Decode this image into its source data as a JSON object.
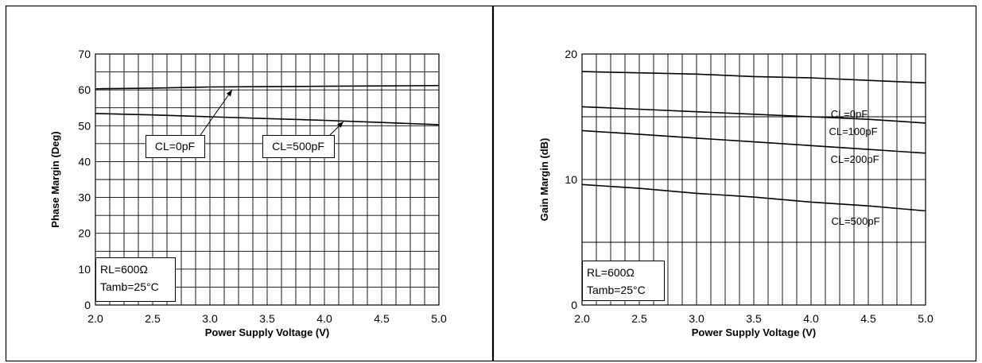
{
  "chart_data": [
    {
      "type": "line",
      "xlabel": "Power Supply Voltage (V)",
      "ylabel": "Phase Margin (Deg)",
      "xlim": [
        2.0,
        5.0
      ],
      "ylim": [
        0,
        70
      ],
      "x_ticks": [
        "2.0",
        "2.5",
        "3.0",
        "3.5",
        "4.0",
        "4.5",
        "5.0"
      ],
      "y_ticks": [
        "0",
        "10",
        "20",
        "30",
        "40",
        "50",
        "60",
        "70"
      ],
      "grid": true,
      "conditions": [
        "RL=600Ω",
        "Tamb=25°C"
      ],
      "series": [
        {
          "name": "CL=0pF",
          "x": [
            2.0,
            2.5,
            3.0,
            3.5,
            4.0,
            4.5,
            5.0
          ],
          "y": [
            60.3,
            60.5,
            60.8,
            60.9,
            61.0,
            61.1,
            61.2
          ]
        },
        {
          "name": "CL=500pF",
          "x": [
            2.0,
            2.5,
            3.0,
            3.5,
            4.0,
            4.5,
            5.0
          ],
          "y": [
            53.4,
            53.0,
            52.5,
            52.0,
            51.5,
            50.9,
            50.3
          ]
        }
      ]
    },
    {
      "type": "line",
      "xlabel": "Power Supply Voltage (V)",
      "ylabel": "Gain Margin (dB)",
      "xlim": [
        2.0,
        5.0
      ],
      "ylim": [
        0,
        20
      ],
      "x_ticks": [
        "2.0",
        "2.5",
        "3.0",
        "3.5",
        "4.0",
        "4.5",
        "5.0"
      ],
      "y_ticks": [
        "0",
        "10",
        "20"
      ],
      "grid": true,
      "conditions": [
        "RL=600Ω",
        "Tamb=25°C"
      ],
      "series": [
        {
          "name": "CL=0pF",
          "x": [
            2.0,
            2.5,
            3.0,
            3.5,
            4.0,
            4.5,
            5.0
          ],
          "y": [
            18.6,
            18.5,
            18.4,
            18.2,
            18.1,
            17.9,
            17.7
          ]
        },
        {
          "name": "CL=100pF",
          "x": [
            2.0,
            2.5,
            3.0,
            3.5,
            4.0,
            4.5,
            5.0
          ],
          "y": [
            15.8,
            15.6,
            15.4,
            15.2,
            15.0,
            14.8,
            14.5
          ]
        },
        {
          "name": "CL=200pF",
          "x": [
            2.0,
            2.5,
            3.0,
            3.5,
            4.0,
            4.5,
            5.0
          ],
          "y": [
            13.9,
            13.6,
            13.3,
            13.0,
            12.7,
            12.4,
            12.1
          ]
        },
        {
          "name": "CL=500pF",
          "x": [
            2.0,
            2.5,
            3.0,
            3.5,
            4.0,
            4.5,
            5.0
          ],
          "y": [
            9.6,
            9.3,
            8.9,
            8.6,
            8.2,
            7.9,
            7.5
          ]
        }
      ]
    }
  ]
}
